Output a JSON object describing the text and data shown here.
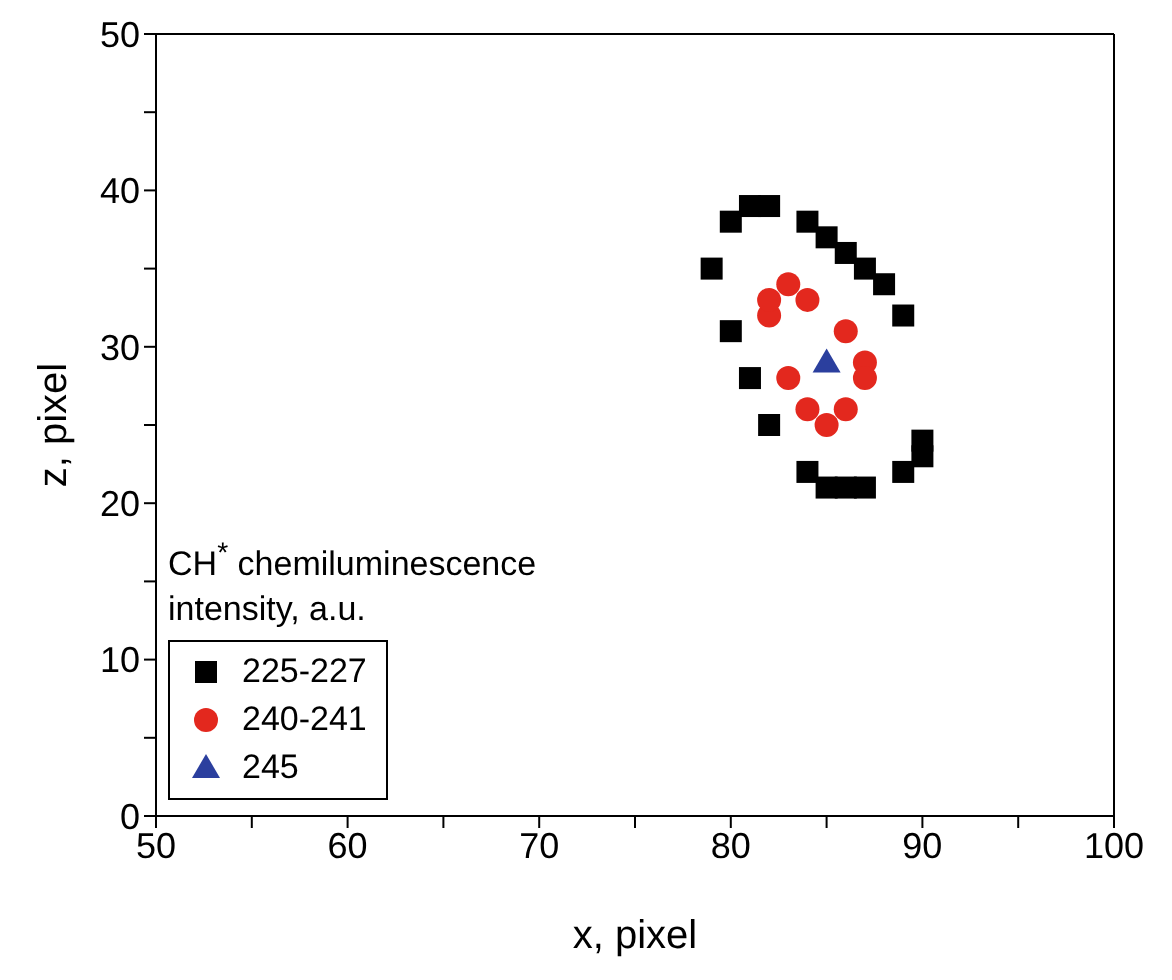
{
  "chart_data": {
    "type": "scatter",
    "xlabel": "x, pixel",
    "ylabel": "z, pixel",
    "legend_title": "CH$^{*}$ chemiluminescence intensity, a.u.",
    "legend": "bottom left",
    "xlim": [
      50,
      100
    ],
    "xticks": [
      50,
      {
        "value": 55,
        "label": null
      },
      60,
      {
        "value": 65,
        "label": null
      },
      70,
      {
        "value": 75,
        "label": null
      },
      80,
      {
        "value": 85,
        "label": null
      },
      90,
      {
        "value": 95,
        "label": null
      },
      100
    ],
    "ylim": [
      0,
      50
    ],
    "yticks": [
      0,
      {
        "value": 5,
        "label": null
      },
      10,
      {
        "value": 15,
        "label": null
      },
      20,
      {
        "value": 25,
        "label": null
      },
      30,
      {
        "value": 35,
        "label": null
      },
      40,
      {
        "value": 45,
        "label": null
      },
      50
    ],
    "series": [
      {
        "name": "225-227",
        "color": "#000000",
        "marker": "square",
        "x": [
          79,
          80,
          81,
          82,
          84,
          85,
          86,
          87,
          88,
          89,
          80,
          81,
          82,
          84,
          85,
          86,
          87,
          89,
          90,
          90
        ],
        "values": [
          35,
          38,
          39,
          39,
          38,
          37,
          36,
          35,
          34,
          32,
          31,
          28,
          25,
          22,
          21,
          21,
          21,
          22,
          23,
          24
        ]
      },
      {
        "name": "240-241",
        "color": "#e3281e",
        "marker": "circle",
        "x": [
          82,
          82,
          83,
          84,
          86,
          87,
          87,
          83,
          84,
          85,
          86
        ],
        "values": [
          32,
          33,
          34,
          33,
          31,
          29,
          28,
          28,
          26,
          25,
          26
        ]
      },
      {
        "name": "245",
        "color": "#2b3f9e",
        "marker": "triangle",
        "x": [
          85
        ],
        "values": [
          29
        ]
      }
    ]
  }
}
